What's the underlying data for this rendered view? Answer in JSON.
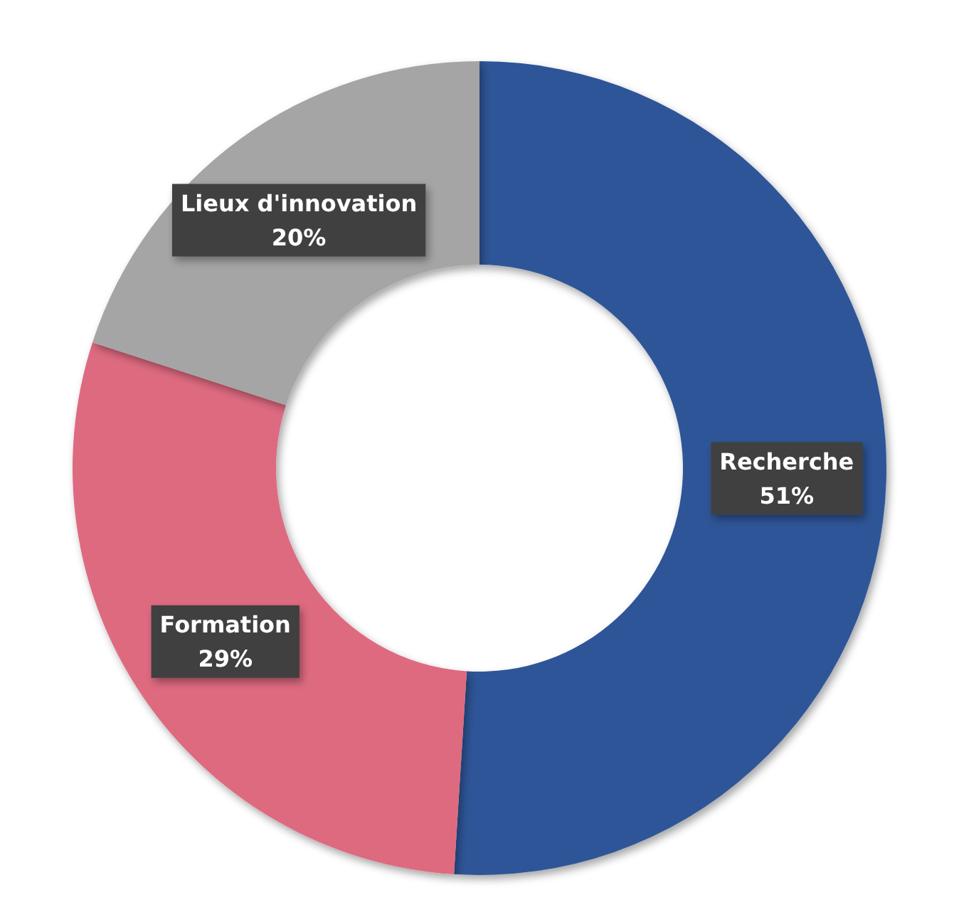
{
  "chart_data": {
    "type": "donut",
    "categories": [
      "Recherche",
      "Formation",
      "Lieux d'innovation"
    ],
    "values": [
      51,
      29,
      20
    ],
    "colors": [
      "#2e5597",
      "#de6a80",
      "#a5a5a5"
    ],
    "value_labels": [
      "51%",
      "29%",
      "20%"
    ]
  }
}
